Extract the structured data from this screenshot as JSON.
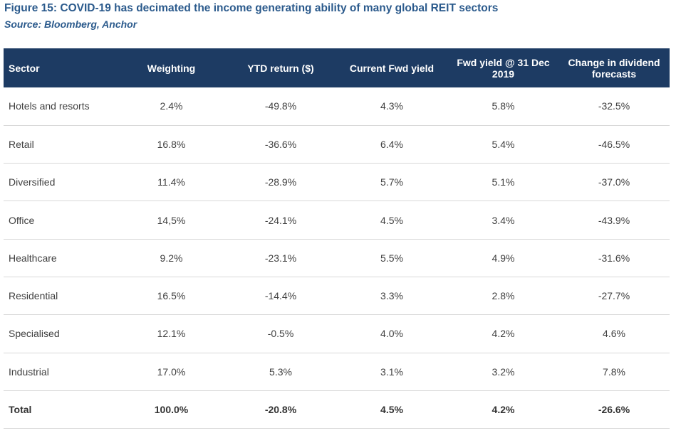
{
  "figure": {
    "title": "Figure 15: COVID-19 has decimated the income generating ability of many global REIT sectors",
    "source": "Source: Bloomberg, Anchor"
  },
  "colors": {
    "header_background": "#1d3b63",
    "title_text": "#2b5a8c",
    "row_divider": "#d9d9d9"
  },
  "table": {
    "headers": [
      "Sector",
      "Weighting",
      "YTD return ($)",
      "Current Fwd yield",
      "Fwd yield @ 31 Dec 2019",
      "Change in dividend forecasts"
    ],
    "rows": [
      [
        "Hotels and resorts",
        "2.4%",
        "-49.8%",
        "4.3%",
        "5.8%",
        "-32.5%"
      ],
      [
        "Retail",
        "16.8%",
        "-36.6%",
        "6.4%",
        "5.4%",
        "-46.5%"
      ],
      [
        "Diversified",
        "11.4%",
        "-28.9%",
        "5.7%",
        "5.1%",
        "-37.0%"
      ],
      [
        "Office",
        "14,5%",
        "-24.1%",
        "4.5%",
        "3.4%",
        "-43.9%"
      ],
      [
        "Healthcare",
        "9.2%",
        "-23.1%",
        "5.5%",
        "4.9%",
        "-31.6%"
      ],
      [
        "Residential",
        "16.5%",
        "-14.4%",
        "3.3%",
        "2.8%",
        "-27.7%"
      ],
      [
        "Specialised",
        "12.1%",
        "-0.5%",
        "4.0%",
        "4.2%",
        "4.6%"
      ],
      [
        "Industrial",
        "17.0%",
        "5.3%",
        "3.1%",
        "3.2%",
        "7.8%"
      ]
    ],
    "total": [
      "Total",
      "100.0%",
      "-20.8%",
      "4.5%",
      "4.2%",
      "-26.6%"
    ]
  }
}
